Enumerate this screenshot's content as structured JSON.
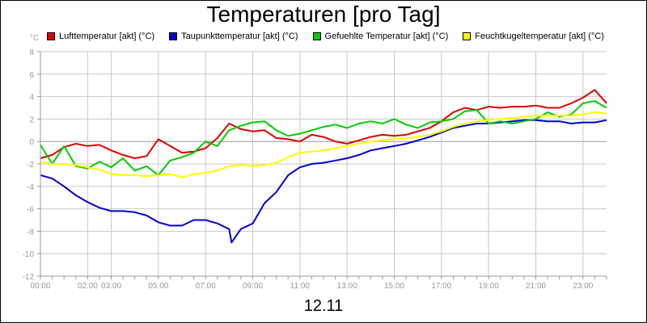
{
  "chart_data": {
    "type": "line",
    "title": "Temperaturen [pro Tag]",
    "xlabel": "12.11",
    "ylabel": "°C",
    "ylim": [
      -12,
      8
    ],
    "xlim": [
      0,
      24
    ],
    "grid": true,
    "legend_position": "top",
    "yticks": [
      "8",
      "6",
      "4",
      "2",
      "0",
      "-2",
      "-4",
      "-6",
      "-8",
      "-10",
      "-12"
    ],
    "xticks": [
      {
        "pos": 0,
        "label": "00:00"
      },
      {
        "pos": 2,
        "label": "02:00"
      },
      {
        "pos": 3,
        "label": "03:00"
      },
      {
        "pos": 5,
        "label": "05:00"
      },
      {
        "pos": 7,
        "label": "07:00"
      },
      {
        "pos": 9,
        "label": "09:00"
      },
      {
        "pos": 11,
        "label": "11:00"
      },
      {
        "pos": 13,
        "label": "13:00"
      },
      {
        "pos": 15,
        "label": "15:00"
      },
      {
        "pos": 17,
        "label": "17:00"
      },
      {
        "pos": 19,
        "label": "19:00"
      },
      {
        "pos": 21,
        "label": "21:00"
      },
      {
        "pos": 23,
        "label": "23:00"
      }
    ],
    "series": [
      {
        "name": "Lufttemperatur [akt] (°C)",
        "color": "#dd0000",
        "x": [
          0,
          0.5,
          1,
          1.5,
          2,
          2.5,
          3,
          3.5,
          4,
          4.5,
          5,
          5.5,
          6,
          6.5,
          7,
          7.5,
          8,
          8.5,
          9,
          9.5,
          10,
          10.5,
          11,
          11.5,
          12,
          12.5,
          13,
          13.5,
          14,
          14.5,
          15,
          15.5,
          16,
          16.5,
          17,
          17.5,
          18,
          18.5,
          19,
          19.5,
          20,
          20.5,
          21,
          21.5,
          22,
          22.5,
          23,
          23.5,
          24
        ],
        "values": [
          -1.5,
          -1.2,
          -0.5,
          -0.2,
          -0.4,
          -0.3,
          -0.8,
          -1.2,
          -1.5,
          -1.3,
          0.2,
          -0.4,
          -1.0,
          -0.9,
          -0.6,
          0.3,
          1.6,
          1.1,
          0.9,
          1.0,
          0.3,
          0.2,
          0.0,
          0.6,
          0.4,
          0.0,
          -0.2,
          0.1,
          0.4,
          0.6,
          0.5,
          0.6,
          0.9,
          1.2,
          1.8,
          2.6,
          3.0,
          2.8,
          3.1,
          3.0,
          3.1,
          3.1,
          3.2,
          3.0,
          3.0,
          3.4,
          3.9,
          4.6,
          3.4
        ]
      },
      {
        "name": "Taupunkttemperatur [akt] (°C)",
        "color": "#0000cc",
        "x": [
          0,
          0.5,
          1,
          1.5,
          2,
          2.5,
          3,
          3.5,
          4,
          4.5,
          5,
          5.5,
          6,
          6.5,
          7,
          7.5,
          8,
          8.1,
          8.5,
          9,
          9.5,
          10,
          10.5,
          11,
          11.5,
          12,
          12.5,
          13,
          13.5,
          14,
          14.5,
          15,
          15.5,
          16,
          16.5,
          17,
          17.5,
          18,
          18.5,
          19,
          19.5,
          20,
          20.5,
          21,
          21.5,
          22,
          22.5,
          23,
          23.5,
          24
        ],
        "values": [
          -3.0,
          -3.3,
          -4.0,
          -4.8,
          -5.4,
          -5.9,
          -6.2,
          -6.2,
          -6.3,
          -6.6,
          -7.2,
          -7.5,
          -7.5,
          -7.0,
          -7.0,
          -7.3,
          -7.8,
          -9.0,
          -7.8,
          -7.3,
          -5.5,
          -4.5,
          -3.0,
          -2.3,
          -2.0,
          -1.9,
          -1.7,
          -1.5,
          -1.2,
          -0.8,
          -0.6,
          -0.4,
          -0.2,
          0.1,
          0.4,
          0.8,
          1.2,
          1.4,
          1.6,
          1.6,
          1.7,
          1.8,
          1.9,
          1.9,
          1.8,
          1.8,
          1.6,
          1.7,
          1.7,
          1.9
        ]
      },
      {
        "name": "Gefuehlte Temperatur [akt] (°C)",
        "color": "#00cc00",
        "x": [
          0,
          0.5,
          1,
          1.5,
          2,
          2.5,
          3,
          3.5,
          4,
          4.5,
          5,
          5.5,
          6,
          6.5,
          7,
          7.5,
          8,
          8.5,
          9,
          9.5,
          10,
          10.5,
          11,
          11.5,
          12,
          12.5,
          13,
          13.5,
          14,
          14.5,
          15,
          15.5,
          16,
          16.5,
          17,
          17.5,
          18,
          18.5,
          19,
          19.5,
          20,
          20.5,
          21,
          21.5,
          22,
          22.5,
          23,
          23.5,
          24
        ],
        "values": [
          -0.3,
          -2.0,
          -0.4,
          -2.2,
          -2.4,
          -1.8,
          -2.3,
          -1.5,
          -2.6,
          -2.2,
          -3.0,
          -1.7,
          -1.4,
          -1.0,
          0.0,
          -0.4,
          1.0,
          1.4,
          1.7,
          1.8,
          1.0,
          0.5,
          0.7,
          1.0,
          1.3,
          1.5,
          1.2,
          1.6,
          1.8,
          1.6,
          2.0,
          1.5,
          1.2,
          1.7,
          1.8,
          2.0,
          2.7,
          2.8,
          1.6,
          1.8,
          1.6,
          1.8,
          2.0,
          2.6,
          2.2,
          2.4,
          3.4,
          3.6,
          3.0
        ]
      },
      {
        "name": "Feuchtkugeltemperatur [akt] (°C)",
        "color": "#ffff00",
        "x": [
          0,
          0.5,
          1,
          1.5,
          2,
          2.5,
          3,
          3.5,
          4,
          4.5,
          5,
          5.5,
          6,
          6.5,
          7,
          7.5,
          8,
          8.5,
          9,
          9.5,
          10,
          10.5,
          11,
          11.5,
          12,
          12.5,
          13,
          13.5,
          14,
          14.5,
          15,
          15.5,
          16,
          16.5,
          17,
          17.5,
          18,
          18.5,
          19,
          19.5,
          20,
          20.5,
          21,
          21.5,
          22,
          22.5,
          23,
          23.5,
          24
        ],
        "values": [
          -1.8,
          -2.0,
          -2.0,
          -2.1,
          -2.3,
          -2.5,
          -2.9,
          -3.0,
          -3.0,
          -3.1,
          -3.0,
          -2.9,
          -3.2,
          -2.9,
          -2.8,
          -2.6,
          -2.2,
          -2.1,
          -2.2,
          -2.1,
          -1.9,
          -1.4,
          -1.0,
          -0.9,
          -0.8,
          -0.6,
          -0.4,
          -0.2,
          0.0,
          0.1,
          0.2,
          0.3,
          0.4,
          0.6,
          0.9,
          1.3,
          1.6,
          1.8,
          1.9,
          2.0,
          2.1,
          2.2,
          2.3,
          2.3,
          2.3,
          2.3,
          2.4,
          2.6,
          2.5
        ]
      }
    ]
  }
}
